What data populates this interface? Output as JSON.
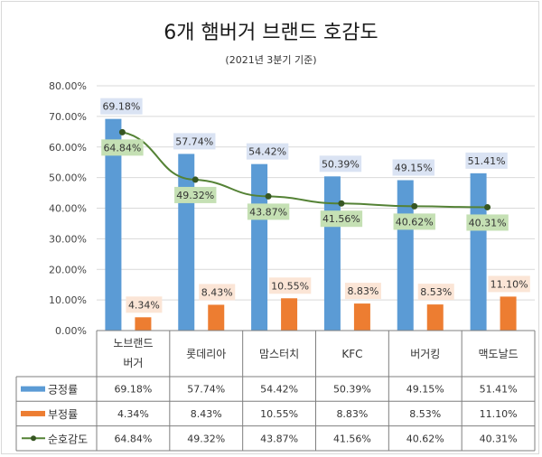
{
  "header": {
    "title": "6개 햄버거 브랜드 호감도",
    "subtitle": "(2021년 3분기 기준)"
  },
  "colors": {
    "positive": "#5b9bd5",
    "negative": "#ed7d31",
    "net": "#548235",
    "net_marker": "#375623",
    "pos_label_bg": "#dae3f3",
    "neg_label_bg": "#fbe5d6",
    "net_label_bg": "#c5e0b4",
    "grid": "#d9d9d9",
    "table_border": "#7f7f7f"
  },
  "chart_data": {
    "type": "bar",
    "title": "6개 햄버거 브랜드 호감도",
    "subtitle": "(2021년 3분기 기준)",
    "categories": [
      "노브랜드\n버거",
      "롯데리아",
      "맘스터치",
      "KFC",
      "버거킹",
      "맥도날드"
    ],
    "series": [
      {
        "name": "긍정률",
        "type": "bar",
        "values": [
          69.18,
          57.74,
          54.42,
          50.39,
          49.15,
          51.41
        ],
        "labels": [
          "69.18%",
          "57.74%",
          "54.42%",
          "50.39%",
          "49.15%",
          "51.41%"
        ]
      },
      {
        "name": "부정률",
        "type": "bar",
        "values": [
          4.34,
          8.43,
          10.55,
          8.83,
          8.53,
          11.1
        ],
        "labels": [
          "4.34%",
          "8.43%",
          "10.55%",
          "8.83%",
          "8.53%",
          "11.10%"
        ]
      },
      {
        "name": "순호감도",
        "type": "line",
        "values": [
          64.84,
          49.32,
          43.87,
          41.56,
          40.62,
          40.31
        ],
        "labels": [
          "64.84%",
          "49.32%",
          "43.87%",
          "41.56%",
          "40.62%",
          "40.31%"
        ]
      }
    ],
    "ylim": [
      0,
      80
    ],
    "yticks": [
      "0.00%",
      "10.00%",
      "20.00%",
      "30.00%",
      "40.00%",
      "50.00%",
      "60.00%",
      "70.00%",
      "80.00%"
    ],
    "xlabel": "",
    "ylabel": "",
    "grid": true,
    "legend": "data-table-bottom"
  }
}
